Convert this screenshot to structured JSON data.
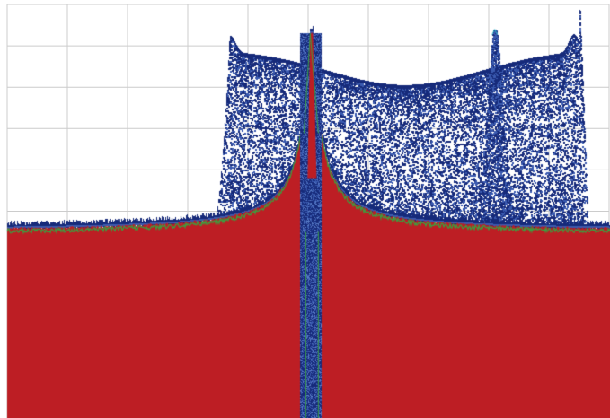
{
  "chart_data": {
    "type": "heatmap",
    "description_visible_text": "",
    "x_grid_count": 10,
    "y_grid_count": 10,
    "grid": true,
    "colors": {
      "background": "#ffffff",
      "grid": "#cccccc",
      "density_high": "#bd1e24",
      "density_mid": "#3a5ab0",
      "density_low": "#162a7a",
      "trace_green": "#3aa040",
      "trace_cyan": "#30b8c8"
    },
    "noise_floor_level": 0.55,
    "peaks": [
      {
        "name": "left-carrier",
        "center": 0.505,
        "height": 0.07
      },
      {
        "name": "right-carrier",
        "center": 0.81,
        "height": 0.06
      }
    ],
    "bands": [
      {
        "name": "left-band",
        "start": 0.37,
        "end": 0.51,
        "top": 0.1
      },
      {
        "name": "right-band",
        "start": 0.51,
        "end": 0.95,
        "top": 0.11
      }
    ],
    "tick_labels": [],
    "xlabel": "",
    "ylabel": ""
  }
}
